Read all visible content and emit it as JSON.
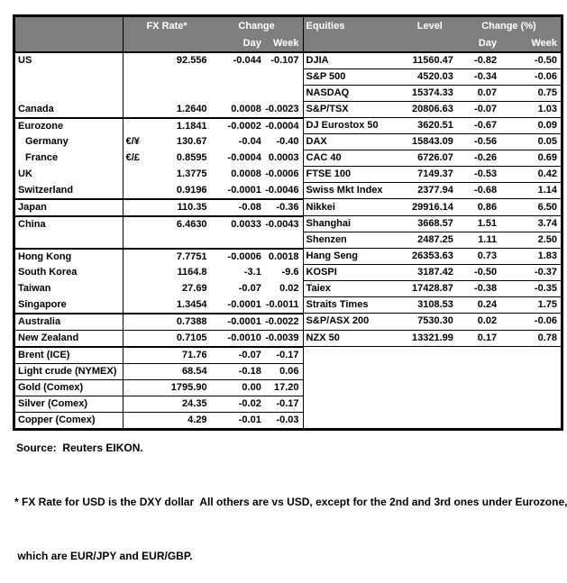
{
  "colors": {
    "header_bg": "#7f7f7f",
    "header_text": "#ffffff",
    "border": "#000000",
    "text": "#000000"
  },
  "table": {
    "header": {
      "fx_rate": "FX Rate*",
      "change": "Change",
      "day": "Day",
      "week": "Week",
      "equities": "Equities",
      "level": "Level",
      "change_pct": "Change (%)"
    },
    "rows": [
      {
        "label": "US",
        "pair": "",
        "fx": "92.556",
        "day": "-0.044",
        "week": "-0.107",
        "equity": "DJIA",
        "level": "11560.47",
        "day_pct": "-0.82",
        "week_pct": "-0.50"
      },
      {
        "label": "",
        "pair": "",
        "fx": "",
        "day": "",
        "week": "",
        "equity": "S&P 500",
        "level": "4520.03",
        "day_pct": "-0.34",
        "week_pct": "-0.06"
      },
      {
        "label": "",
        "pair": "",
        "fx": "",
        "day": "",
        "week": "",
        "equity": "NASDAQ",
        "level": "15374.33",
        "day_pct": "0.07",
        "week_pct": "0.75"
      },
      {
        "label": "Canada",
        "pair": "",
        "fx": "1.2640",
        "day": "0.0008",
        "week": "-0.0023",
        "equity": "S&P/TSX",
        "level": "20806.63",
        "day_pct": "-0.07",
        "week_pct": "1.03",
        "thick": true
      },
      {
        "label": "Eurozone",
        "pair": "",
        "fx": "1.1841",
        "day": "-0.0002",
        "week": "-0.0004",
        "equity": "DJ Eurostox 50",
        "level": "3620.51",
        "day_pct": "-0.67",
        "week_pct": "0.09"
      },
      {
        "label": "Germany",
        "pair": "€/¥",
        "fx": "130.67",
        "day": "-0.04",
        "week": "-0.40",
        "equity": "DAX",
        "level": "15843.09",
        "day_pct": "-0.56",
        "week_pct": "0.05",
        "indent": true
      },
      {
        "label": "France",
        "pair": "€/£",
        "fx": "0.8595",
        "day": "-0.0004",
        "week": "0.0003",
        "equity": "CAC 40",
        "level": "6726.07",
        "day_pct": "-0.26",
        "week_pct": "0.69",
        "indent": true
      },
      {
        "label": "UK",
        "pair": "",
        "fx": "1.3775",
        "day": "0.0008",
        "week": "-0.0006",
        "equity": "FTSE 100",
        "level": "7149.37",
        "day_pct": "-0.53",
        "week_pct": "0.42"
      },
      {
        "label": "Switzerland",
        "pair": "",
        "fx": "0.9196",
        "day": "-0.0001",
        "week": "-0.0046",
        "equity": "Swiss Mkt Index",
        "level": "2377.94",
        "day_pct": "-0.68",
        "week_pct": "1.14",
        "thick": true
      },
      {
        "label": "Japan",
        "pair": "",
        "fx": "110.35",
        "day": "-0.08",
        "week": "-0.36",
        "equity": "Nikkei",
        "level": "29916.14",
        "day_pct": "0.86",
        "week_pct": "6.50",
        "thick": true
      },
      {
        "label": "China",
        "pair": "",
        "fx": "6.4630",
        "day": "0.0033",
        "week": "-0.0043",
        "equity": "Shanghai",
        "level": "3668.57",
        "day_pct": "1.51",
        "week_pct": "3.74"
      },
      {
        "label": "",
        "pair": "",
        "fx": "",
        "day": "",
        "week": "",
        "equity": "Shenzen",
        "level": "2487.25",
        "day_pct": "1.11",
        "week_pct": "2.50",
        "thick": true
      },
      {
        "label": "Hong Kong",
        "pair": "",
        "fx": "7.7751",
        "day": "-0.0006",
        "week": "0.0018",
        "equity": "Hang Seng",
        "level": "26353.63",
        "day_pct": "0.73",
        "week_pct": "1.83"
      },
      {
        "label": "South Korea",
        "pair": "",
        "fx": "1164.8",
        "day": "-3.1",
        "week": "-9.6",
        "equity": "KOSPI",
        "level": "3187.42",
        "day_pct": "-0.50",
        "week_pct": "-0.37"
      },
      {
        "label": "Taiwan",
        "pair": "",
        "fx": "27.69",
        "day": "-0.07",
        "week": "0.02",
        "equity": "Taiex",
        "level": "17428.87",
        "day_pct": "-0.38",
        "week_pct": "-0.35"
      },
      {
        "label": "Singapore",
        "pair": "",
        "fx": "1.3454",
        "day": "-0.0001",
        "week": "-0.0011",
        "equity": "Straits Times",
        "level": "3108.53",
        "day_pct": "0.24",
        "week_pct": "1.75",
        "thick": true
      },
      {
        "label": "Australia",
        "pair": "",
        "fx": "0.7388",
        "day": "-0.0001",
        "week": "-0.0022",
        "equity": "S&P/ASX 200",
        "level": "7530.30",
        "day_pct": "0.02",
        "week_pct": "-0.06",
        "lthin": true
      },
      {
        "label": "New Zealand",
        "pair": "",
        "fx": "0.7105",
        "day": "-0.0010",
        "week": "-0.0039",
        "equity": "NZX 50",
        "level": "13321.99",
        "day_pct": "0.17",
        "week_pct": "0.78",
        "thick": true
      },
      {
        "label": "Brent (ICE)",
        "pair": "",
        "fx": "71.76",
        "day": "-0.07",
        "week": "-0.17",
        "equity": "",
        "level": "",
        "day_pct": "",
        "week_pct": "",
        "left_only": true,
        "lthin": true
      },
      {
        "label": "Light crude (NYMEX)",
        "pair": "",
        "fx": "68.54",
        "day": "-0.18",
        "week": "0.06",
        "equity": "",
        "level": "",
        "day_pct": "",
        "week_pct": "",
        "left_only": true,
        "lthin": true
      },
      {
        "label": "Gold (Comex)",
        "pair": "",
        "fx": "1795.90",
        "day": "0.00",
        "week": "17.20",
        "equity": "",
        "level": "",
        "day_pct": "",
        "week_pct": "",
        "left_only": true,
        "lthin": true
      },
      {
        "label": "Silver (Comex)",
        "pair": "",
        "fx": "24.35",
        "day": "-0.02",
        "week": "-0.17",
        "equity": "",
        "level": "",
        "day_pct": "",
        "week_pct": "",
        "left_only": true,
        "lthin": true
      },
      {
        "label": "Copper (Comex)",
        "pair": "",
        "fx": "4.29",
        "day": "-0.01",
        "week": "-0.03",
        "equity": "",
        "level": "",
        "day_pct": "",
        "week_pct": "",
        "left_only": true
      }
    ]
  },
  "footer": {
    "source": "Source:  Reuters EIKON.",
    "note_line1": "* FX Rate for USD is the DXY dollar  All others are vs USD, except for the 2nd and 3rd ones under Eurozone,",
    "note_line2": " which are EUR/JPY and EUR/GBP."
  }
}
